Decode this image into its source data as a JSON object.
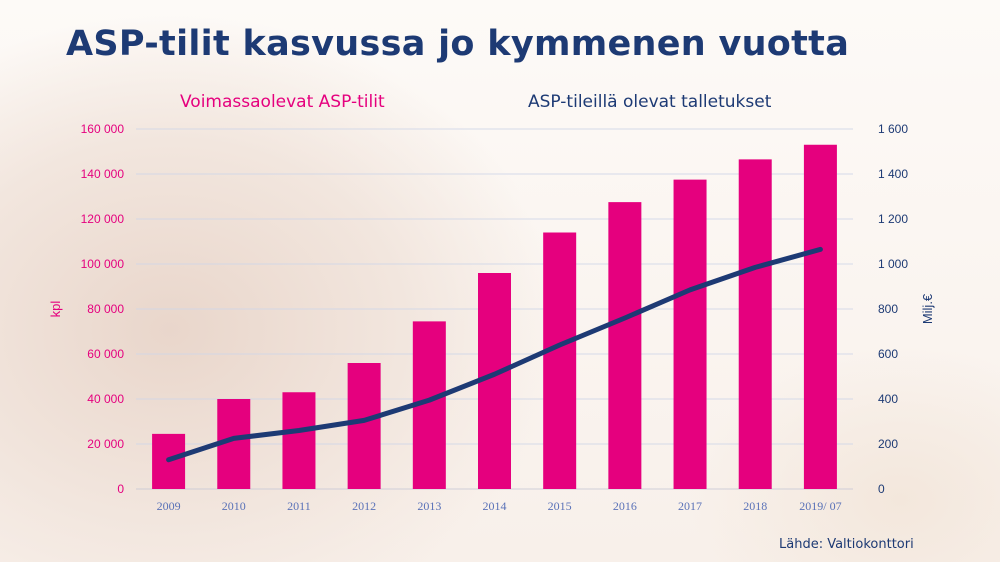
{
  "title": "ASP-tilit kasvussa jo kymmenen vuotta",
  "source": "Lähde: Valtiokonttori",
  "colors": {
    "bars": "#e5007e",
    "line": "#1d3a74",
    "title": "#1d3a74"
  },
  "chart_data": {
    "type": "bar",
    "categories": [
      "2009",
      "2010",
      "2011",
      "2012",
      "2013",
      "2014",
      "2015",
      "2016",
      "2017",
      "2018",
      "2019/ 07"
    ],
    "series": [
      {
        "name": "Voimassaolevat ASP-tilit",
        "type": "bar",
        "axis": "left",
        "values": [
          24500,
          40000,
          43000,
          56000,
          74500,
          96000,
          114000,
          127500,
          137500,
          146500,
          153000
        ]
      },
      {
        "name": "ASP-tileillä olevat talletukset",
        "type": "line",
        "axis": "right",
        "values": [
          130,
          225,
          260,
          305,
          395,
          510,
          640,
          760,
          885,
          985,
          1065
        ]
      }
    ],
    "ylabel": "kpl",
    "ylim": [
      0,
      160000
    ],
    "yticks": [
      "0",
      "20 000",
      "40 000",
      "60 000",
      "80 000",
      "100 000",
      "120 000",
      "140 000",
      "160 000"
    ],
    "y2label": "Milj.€",
    "y2lim": [
      0,
      1600
    ],
    "y2ticks": [
      "0",
      "200",
      "400",
      "600",
      "800",
      "1 000",
      "1 200",
      "1 400",
      "1 600"
    ],
    "grid": true
  }
}
